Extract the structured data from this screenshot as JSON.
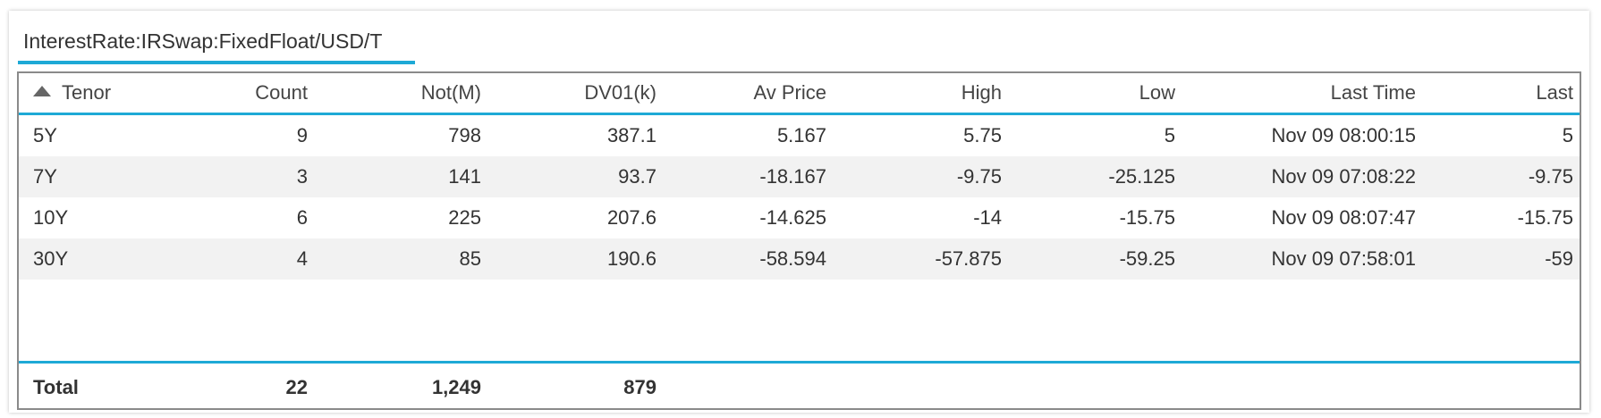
{
  "tab": {
    "title": "InterestRate:IRSwap:FixedFloat/USD/T"
  },
  "table": {
    "columns": [
      "Tenor",
      "Count",
      "Not(M)",
      "DV01(k)",
      "Av Price",
      "High",
      "Low",
      "Last Time",
      "Last"
    ],
    "sort_icon": "sort-ascending-icon",
    "rows": [
      [
        "5Y",
        "9",
        "798",
        "387.1",
        "5.167",
        "5.75",
        "5",
        "Nov 09 08:00:15",
        "5"
      ],
      [
        "7Y",
        "3",
        "141",
        "93.7",
        "-18.167",
        "-9.75",
        "-25.125",
        "Nov 09 07:08:22",
        "-9.75"
      ],
      [
        "10Y",
        "6",
        "225",
        "207.6",
        "-14.625",
        "-14",
        "-15.75",
        "Nov 09 08:07:47",
        "-15.75"
      ],
      [
        "30Y",
        "4",
        "85",
        "190.6",
        "-58.594",
        "-57.875",
        "-59.25",
        "Nov 09 07:58:01",
        "-59"
      ]
    ],
    "total": {
      "label": "Total",
      "count": "22",
      "notional": "1,249",
      "dv01": "879"
    }
  },
  "colors": {
    "accent": "#1ea9d6",
    "alt_row": "#f2f2f2",
    "border": "#8a8a8a"
  }
}
